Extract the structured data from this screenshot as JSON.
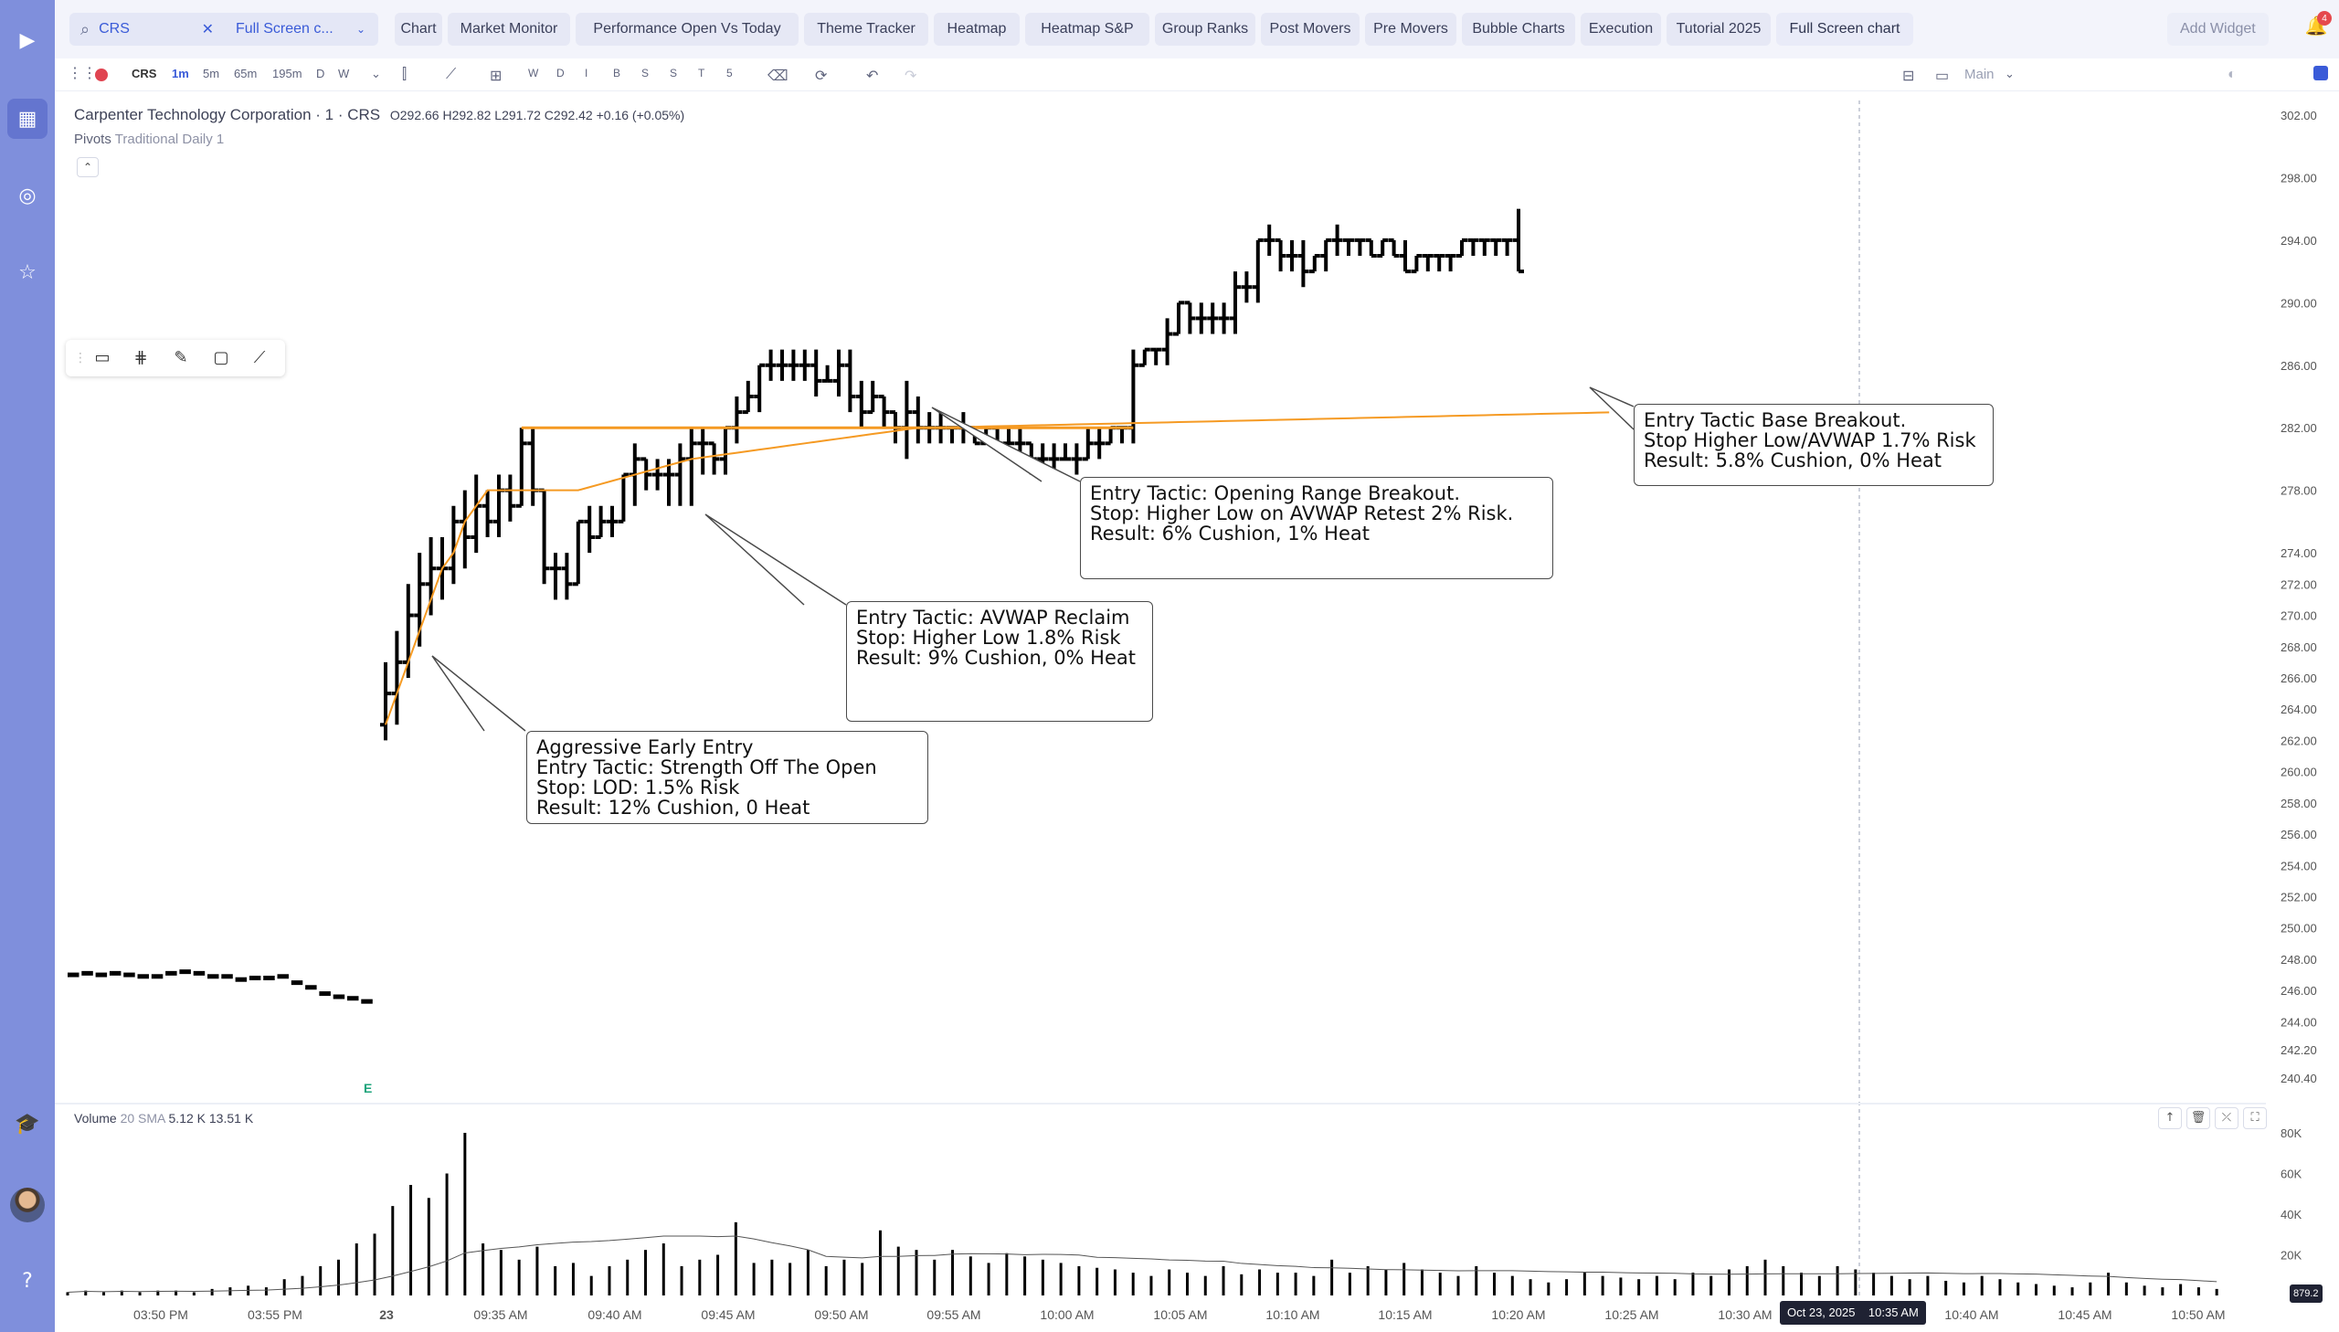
{
  "top_bar": {
    "search_value": "CRS",
    "layout_select": "Full Screen c...",
    "tabs": [
      "Chart",
      "Market Monitor",
      "Performance Open Vs Today",
      "Theme Tracker",
      "Heatmap",
      "Heatmap S&P",
      "Group Ranks",
      "Post Movers",
      "Pre Movers",
      "Bubble Charts",
      "Execution",
      "Tutorial 2025",
      "Full Screen chart"
    ],
    "active_tab": "Full Screen chart",
    "add_widget_label": "Add Widget",
    "notification_count": "4"
  },
  "toolbar": {
    "symbol": "CRS",
    "timeframes": [
      "1m",
      "5m",
      "65m",
      "195m",
      "D",
      "W"
    ],
    "active_timeframe": "1m",
    "sessions": [
      "W",
      "D",
      "I",
      "B",
      "S",
      "S",
      "T",
      "5"
    ],
    "layout_name": "Main"
  },
  "legend": {
    "title": "Carpenter Technology Corporation · 1 · CRS",
    "ohlc": "O292.66 H292.82 L291.72 C292.42 +0.16 (+0.05%)",
    "pivots_name": "Pivots",
    "pivots_params": "Traditional Daily 1",
    "volume_name": "Volume",
    "volume_params": "20 SMA",
    "volume_value": "5.12 K",
    "volume_sma_value": "13.51 K"
  },
  "annotations": [
    {
      "id": "aggressive",
      "lines": [
        "Aggressive Early Entry",
        "Entry Tactic: Strength Off The Open",
        "Stop: LOD: 1.5% Risk",
        "Result: 12% Cushion, 0 Heat"
      ]
    },
    {
      "id": "avwap",
      "lines": [
        "Entry Tactic: AVWAP Reclaim",
        "Stop: Higher Low 1.8% Risk",
        "Result: 9% Cushion, 0% Heat"
      ]
    },
    {
      "id": "orb",
      "lines": [
        "Entry Tactic: Opening Range Breakout.",
        "Stop: Higher Low on AVWAP Retest 2% Risk.",
        "Result: 6% Cushion, 1% Heat"
      ]
    },
    {
      "id": "base",
      "lines": [
        "Entry Tactic Base Breakout.",
        "Stop Higher Low/AVWAP 1.7% Risk",
        "Result: 5.8% Cushion, 0% Heat"
      ]
    }
  ],
  "earnings_marker": "E",
  "crosshair": {
    "date_label": "Oct 23, 2025",
    "time_label": "10:35 AM",
    "price_label": "879.2"
  },
  "colors": {
    "accent": "#3a5bd8",
    "avwap": "#f59a23",
    "candle": "#000000",
    "rail": "#7f8fdc"
  },
  "chart_data": {
    "type": "ohlc-bar",
    "interval": "1m",
    "price_axis": {
      "labels": [
        "302.00",
        "298.00",
        "294.00",
        "290.00",
        "286.00",
        "282.00",
        "278.00",
        "274.00",
        "272.00",
        "270.00",
        "268.00",
        "266.00",
        "264.00",
        "262.00",
        "260.00",
        "258.00",
        "256.00",
        "254.00",
        "252.00",
        "250.00",
        "248.00",
        "246.00",
        "244.00",
        "242.20",
        "240.40"
      ]
    },
    "volume_axis": {
      "labels": [
        "80K",
        "60K",
        "40K",
        "20K"
      ],
      "ylim": [
        0,
        80
      ]
    },
    "time_axis": {
      "labels": [
        "03:50 PM",
        "03:55 PM",
        "23",
        "09:35 AM",
        "09:40 AM",
        "09:45 AM",
        "09:50 AM",
        "09:55 AM",
        "10:00 AM",
        "10:05 AM",
        "10:10 AM",
        "10:15 AM",
        "10:20 AM",
        "10:25 AM",
        "10:30 AM",
        "10:40 AM",
        "10:45 AM",
        "10:50 AM"
      ]
    },
    "prev_session_close": [
      247.0,
      247.1,
      247.0,
      247.1,
      247.0,
      246.9,
      246.9,
      247.1,
      247.2,
      247.1,
      246.9,
      246.9,
      246.7,
      246.8,
      246.8,
      246.9,
      246.5,
      246.2,
      245.8,
      245.6,
      245.5,
      245.3
    ],
    "session": [
      [
        263,
        267,
        262,
        265
      ],
      [
        265,
        269,
        263,
        267
      ],
      [
        267,
        272,
        266,
        270
      ],
      [
        270,
        274,
        268,
        272
      ],
      [
        272,
        275,
        270,
        273
      ],
      [
        273,
        275,
        271,
        273
      ],
      [
        273,
        277,
        272,
        276
      ],
      [
        276,
        278,
        273,
        275
      ],
      [
        275,
        279,
        274,
        277
      ],
      [
        277,
        278,
        275,
        276
      ],
      [
        276,
        279,
        275,
        278
      ],
      [
        278,
        279,
        276,
        277
      ],
      [
        277,
        282,
        277,
        281
      ],
      [
        281,
        282,
        277,
        278
      ],
      [
        278,
        278,
        272,
        273
      ],
      [
        273,
        274,
        271,
        273
      ],
      [
        273,
        274,
        271,
        272
      ],
      [
        272,
        276,
        272,
        276
      ],
      [
        276,
        277,
        274,
        275
      ],
      [
        275,
        277,
        275,
        276
      ],
      [
        276,
        277,
        275,
        276
      ],
      [
        276,
        279,
        276,
        279
      ],
      [
        279,
        281,
        277,
        280
      ],
      [
        280,
        280,
        278,
        279
      ],
      [
        279,
        280,
        278,
        279
      ],
      [
        279,
        280,
        277,
        279
      ],
      [
        279,
        281,
        277,
        280
      ],
      [
        280,
        282,
        277,
        281
      ],
      [
        281,
        282,
        279,
        281
      ],
      [
        281,
        281,
        279,
        280
      ],
      [
        280,
        282,
        279,
        282
      ],
      [
        282,
        284,
        281,
        283
      ],
      [
        283,
        285,
        283,
        284
      ],
      [
        284,
        286,
        283,
        286
      ],
      [
        286,
        287,
        285,
        286
      ],
      [
        286,
        287,
        285,
        286
      ],
      [
        286,
        287,
        285,
        286
      ],
      [
        286,
        287,
        285,
        286
      ],
      [
        286,
        287,
        284,
        285
      ],
      [
        285,
        286,
        285,
        285
      ],
      [
        285,
        287,
        284,
        286
      ],
      [
        286,
        287,
        283,
        284
      ],
      [
        284,
        285,
        282,
        283
      ],
      [
        283,
        285,
        283,
        284
      ],
      [
        284,
        284,
        282,
        283
      ],
      [
        283,
        283,
        281,
        282
      ],
      [
        282,
        285,
        280,
        283
      ],
      [
        283,
        284,
        281,
        282
      ],
      [
        282,
        283,
        281,
        282
      ],
      [
        282,
        283,
        281,
        282
      ],
      [
        282,
        282,
        281,
        282
      ],
      [
        282,
        283,
        281,
        282
      ],
      [
        282,
        282,
        281,
        281
      ],
      [
        281,
        282,
        281,
        282
      ],
      [
        282,
        282,
        281,
        281
      ],
      [
        281,
        282,
        281,
        281
      ],
      [
        281,
        282,
        280,
        281
      ],
      [
        281,
        281,
        279,
        280
      ],
      [
        280,
        281,
        279,
        280
      ],
      [
        280,
        281,
        279,
        280
      ],
      [
        280,
        281,
        280,
        280
      ],
      [
        280,
        281,
        279,
        280
      ],
      [
        280,
        282,
        280,
        281
      ],
      [
        281,
        282,
        280,
        281
      ],
      [
        281,
        282,
        281,
        282
      ],
      [
        282,
        282,
        281,
        282
      ],
      [
        282,
        287,
        281,
        286
      ],
      [
        286,
        287,
        286,
        287
      ],
      [
        287,
        287,
        286,
        287
      ],
      [
        287,
        289,
        286,
        288
      ],
      [
        288,
        290,
        288,
        290
      ],
      [
        290,
        290,
        288,
        289
      ],
      [
        289,
        290,
        288,
        289
      ],
      [
        289,
        290,
        288,
        289
      ],
      [
        289,
        290,
        288,
        289
      ],
      [
        289,
        292,
        288,
        291
      ],
      [
        291,
        292,
        290,
        291
      ],
      [
        291,
        294,
        290,
        294
      ],
      [
        294,
        295,
        293,
        294
      ],
      [
        294,
        294,
        292,
        293
      ],
      [
        293,
        294,
        292,
        293
      ],
      [
        293,
        294,
        291,
        292
      ],
      [
        292,
        293,
        292,
        293
      ],
      [
        293,
        294,
        292,
        294
      ],
      [
        294,
        295,
        293,
        294
      ],
      [
        294,
        294,
        293,
        294
      ],
      [
        294,
        294,
        293,
        294
      ],
      [
        294,
        294,
        293,
        293
      ],
      [
        293,
        294,
        293,
        294
      ],
      [
        294,
        294,
        293,
        293
      ],
      [
        293,
        294,
        292,
        292
      ],
      [
        292,
        293,
        292,
        293
      ],
      [
        293,
        293,
        292,
        293
      ],
      [
        293,
        293,
        292,
        293
      ],
      [
        293,
        293,
        292,
        293
      ],
      [
        293,
        294,
        293,
        294
      ],
      [
        294,
        294,
        293,
        294
      ],
      [
        294,
        294,
        293,
        294
      ],
      [
        294,
        294,
        293,
        294
      ],
      [
        294,
        294,
        293,
        294
      ],
      [
        294,
        296,
        292,
        292
      ]
    ],
    "volume": [
      2,
      3,
      2,
      3,
      2,
      3,
      3,
      2,
      4,
      5,
      6,
      5,
      10,
      12,
      18,
      22,
      32,
      38,
      55,
      68,
      60,
      75,
      100,
      32,
      28,
      22,
      30,
      18,
      20,
      12,
      18,
      22,
      28,
      32,
      18,
      22,
      25,
      45,
      20,
      22,
      20,
      28,
      18,
      22,
      20,
      40,
      30,
      28,
      22,
      28,
      24,
      20,
      26,
      24,
      22,
      20,
      18,
      17,
      16,
      14,
      12,
      16,
      14,
      12,
      18,
      13,
      16,
      14,
      14,
      12,
      22,
      14,
      18,
      16,
      20,
      16,
      14,
      12,
      18,
      14,
      12,
      10,
      8,
      10,
      14,
      12,
      11,
      10,
      12,
      10,
      14,
      12,
      16,
      18,
      22,
      18,
      14,
      12,
      18,
      16,
      14,
      12,
      10,
      12,
      9,
      8,
      12,
      10,
      8,
      7,
      6,
      5,
      8,
      14,
      8,
      6,
      5,
      7,
      5,
      4
    ],
    "vwap_level": 282.0,
    "avwap": [
      263,
      265,
      267,
      269,
      271,
      273,
      274,
      276,
      277,
      278,
      278,
      278,
      278,
      278,
      278,
      278,
      278,
      278,
      278.2,
      278.4,
      278.6,
      278.8,
      279,
      279.2,
      279.4,
      279.6,
      279.8,
      280,
      280.1,
      280.2,
      280.3,
      280.4,
      280.5,
      280.6,
      280.7,
      280.8,
      280.9,
      281.0,
      281.1,
      281.2,
      281.3,
      281.4,
      281.5,
      281.6,
      281.7,
      281.8,
      281.9,
      282.0
    ]
  }
}
